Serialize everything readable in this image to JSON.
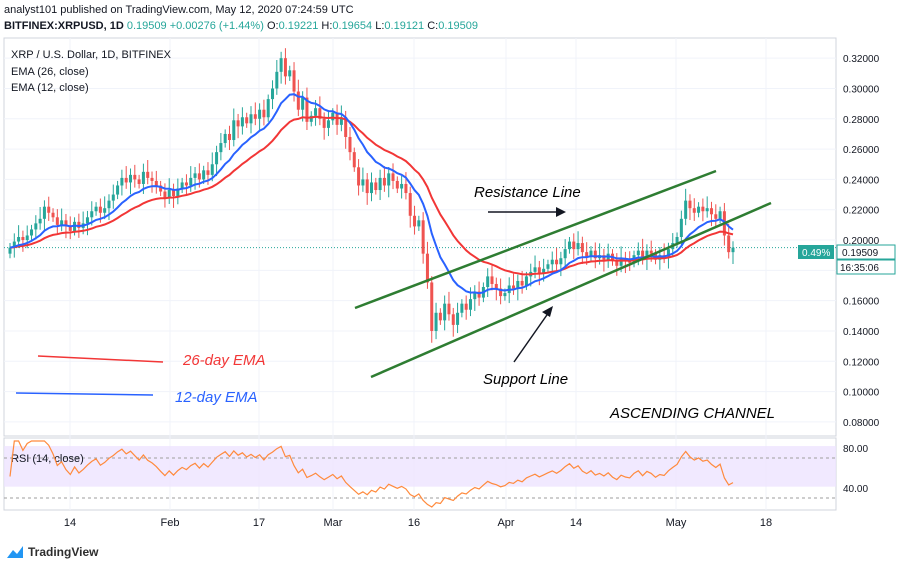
{
  "header": {
    "publish_line": "analyst101 published on TradingView.com, May 12, 2020 07:24:59 UTC",
    "symbol": "BITFINEX:XRPUSD, 1D",
    "last": "0.19509",
    "change": "+0.00276 (+1.44%)",
    "o_label": "O:",
    "o": "0.19221",
    "h_label": "H:",
    "h": "0.19654",
    "l_label": "L:",
    "l": "0.19121",
    "c_label": "C:",
    "c": "0.19509"
  },
  "legend": {
    "title": "XRP / U.S. Dollar, 1D, BITFINEX",
    "ema26": "EMA (26, close)",
    "ema12": "EMA (12, close)"
  },
  "annotations": {
    "resistance": "Resistance Line",
    "support": "Support Line",
    "channel": "ASCENDING  CHANNEL",
    "ema26_key": "26-day EMA",
    "ema12_key": "12-day EMA"
  },
  "price_tags": {
    "pct": "0.49%",
    "price": "0.19509",
    "countdown": "16:35:06"
  },
  "rsi": {
    "label": "RSI (14, close)",
    "ticks": [
      "80.00",
      "40.00"
    ]
  },
  "footer": {
    "brand": "TradingView"
  },
  "colors": {
    "up": "#26a69a",
    "down": "#ef5350",
    "ema26": "#f23636",
    "ema12": "#2962ff",
    "channel": "#2e7d32",
    "rsi_line": "#ff8a3d",
    "rsi_band": "#ede3ff"
  },
  "chart_data": {
    "type": "candlestick",
    "x_ticks": [
      "14",
      "Feb",
      "17",
      "Mar",
      "16",
      "Apr",
      "14",
      "May",
      "18"
    ],
    "y_ticks": [
      "0.32000",
      "0.30000",
      "0.28000",
      "0.26000",
      "0.24000",
      "0.22000",
      "0.20000",
      "0.18000",
      "0.16000",
      "0.14000",
      "0.12000",
      "0.10000",
      "0.08000"
    ],
    "ylim": [
      0.072,
      0.332
    ],
    "rsi_ylim": [
      20,
      85
    ],
    "closes": [
      0.195,
      0.199,
      0.202,
      0.2,
      0.203,
      0.207,
      0.211,
      0.214,
      0.222,
      0.218,
      0.215,
      0.21,
      0.213,
      0.209,
      0.206,
      0.212,
      0.208,
      0.211,
      0.215,
      0.219,
      0.222,
      0.218,
      0.221,
      0.226,
      0.23,
      0.236,
      0.241,
      0.238,
      0.243,
      0.24,
      0.237,
      0.245,
      0.241,
      0.239,
      0.236,
      0.232,
      0.228,
      0.233,
      0.229,
      0.234,
      0.238,
      0.236,
      0.241,
      0.244,
      0.24,
      0.246,
      0.243,
      0.25,
      0.258,
      0.264,
      0.27,
      0.266,
      0.279,
      0.275,
      0.281,
      0.277,
      0.283,
      0.28,
      0.286,
      0.281,
      0.293,
      0.3,
      0.311,
      0.32,
      0.308,
      0.312,
      0.298,
      0.286,
      0.294,
      0.278,
      0.282,
      0.287,
      0.28,
      0.274,
      0.279,
      0.284,
      0.276,
      0.281,
      0.268,
      0.258,
      0.248,
      0.236,
      0.24,
      0.231,
      0.238,
      0.233,
      0.241,
      0.236,
      0.244,
      0.239,
      0.234,
      0.237,
      0.231,
      0.216,
      0.209,
      0.213,
      0.191,
      0.172,
      0.14,
      0.152,
      0.147,
      0.158,
      0.151,
      0.144,
      0.152,
      0.158,
      0.154,
      0.161,
      0.166,
      0.162,
      0.169,
      0.176,
      0.171,
      0.168,
      0.163,
      0.165,
      0.17,
      0.168,
      0.173,
      0.17,
      0.176,
      0.179,
      0.182,
      0.178,
      0.181,
      0.184,
      0.187,
      0.184,
      0.188,
      0.194,
      0.199,
      0.194,
      0.198,
      0.192,
      0.189,
      0.193,
      0.188,
      0.19,
      0.187,
      0.191,
      0.186,
      0.183,
      0.188,
      0.186,
      0.185,
      0.19,
      0.193,
      0.188,
      0.193,
      0.191,
      0.187,
      0.19,
      0.189,
      0.194,
      0.198,
      0.202,
      0.214,
      0.226,
      0.221,
      0.218,
      0.222,
      0.219,
      0.221,
      0.217,
      0.214,
      0.219,
      0.203,
      0.192,
      0.195
    ]
  }
}
